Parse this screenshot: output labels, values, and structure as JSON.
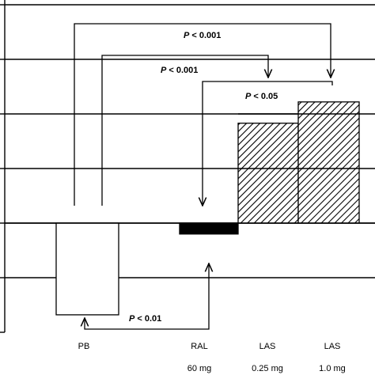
{
  "chart_data": {
    "type": "bar",
    "title": "",
    "xlabel": "",
    "ylabel": "",
    "ylim": [
      -2,
      4
    ],
    "grid": true,
    "categories": [
      {
        "name": "PB",
        "dose": "",
        "value": -1.68,
        "fill": "white"
      },
      {
        "name": "RAL",
        "dose": "60 mg",
        "value": -0.2,
        "fill": "solid"
      },
      {
        "name": "LAS",
        "dose": "0.25 mg",
        "value": 1.83,
        "fill": "hatched"
      },
      {
        "name": "LAS",
        "dose": "1.0 mg",
        "value": 2.22,
        "fill": "hatched"
      }
    ],
    "annotations": [
      {
        "p": "P",
        "text": " < 0.001",
        "from": "PB",
        "to": "LAS 1.0 mg"
      },
      {
        "p": "P",
        "text": " < 0.001",
        "from": "PB",
        "to": "LAS 0.25 mg"
      },
      {
        "p": "P",
        "text": " < 0.05",
        "from": "RAL",
        "to": "LAS 1.0 mg"
      },
      {
        "p": "P",
        "text": " < 0.01",
        "from": "PB",
        "to": "RAL"
      }
    ]
  },
  "colors": {
    "bar_solid": "#000000",
    "hatch": "#000000",
    "grid": "#000000"
  }
}
